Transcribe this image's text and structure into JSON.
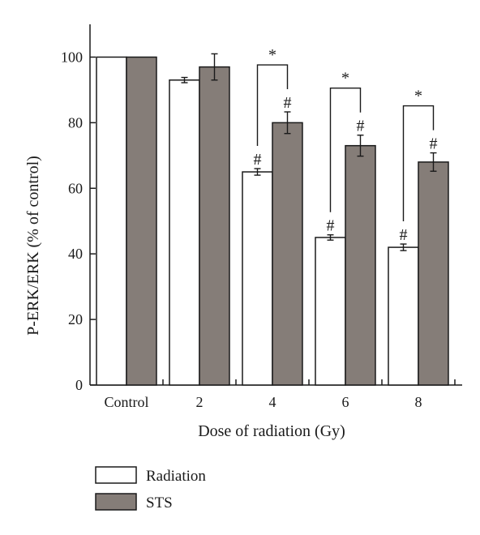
{
  "chart_data": {
    "type": "bar",
    "categories": [
      "Control",
      "2",
      "4",
      "6",
      "8"
    ],
    "series": [
      {
        "name": "Radiation",
        "values": [
          100,
          93,
          65,
          45,
          42
        ],
        "errors": [
          0,
          0.8,
          1.0,
          0.8,
          1.0
        ],
        "marks": [
          "",
          "",
          "#",
          "#",
          "#"
        ]
      },
      {
        "name": "STS",
        "values": [
          100,
          97,
          80,
          73,
          68
        ],
        "errors": [
          0,
          4.0,
          3.3,
          3.2,
          2.8
        ],
        "marks": [
          "",
          "",
          "#",
          "#",
          "#"
        ]
      }
    ],
    "comparisons": [
      {
        "category": "4",
        "label": "*"
      },
      {
        "category": "6",
        "label": "*"
      },
      {
        "category": "8",
        "label": "*"
      }
    ],
    "xlabel": "Dose of radiation (Gy)",
    "ylabel": "P-ERK/ERK (% of control)",
    "ylim": [
      0,
      110
    ],
    "yticks": [
      0,
      20,
      40,
      60,
      80,
      100
    ],
    "grid": false,
    "legend_position": "bottom-left",
    "colors": {
      "Radiation": "#ffffff",
      "STS": "#857d78",
      "stroke": "#1a1a1a"
    }
  }
}
